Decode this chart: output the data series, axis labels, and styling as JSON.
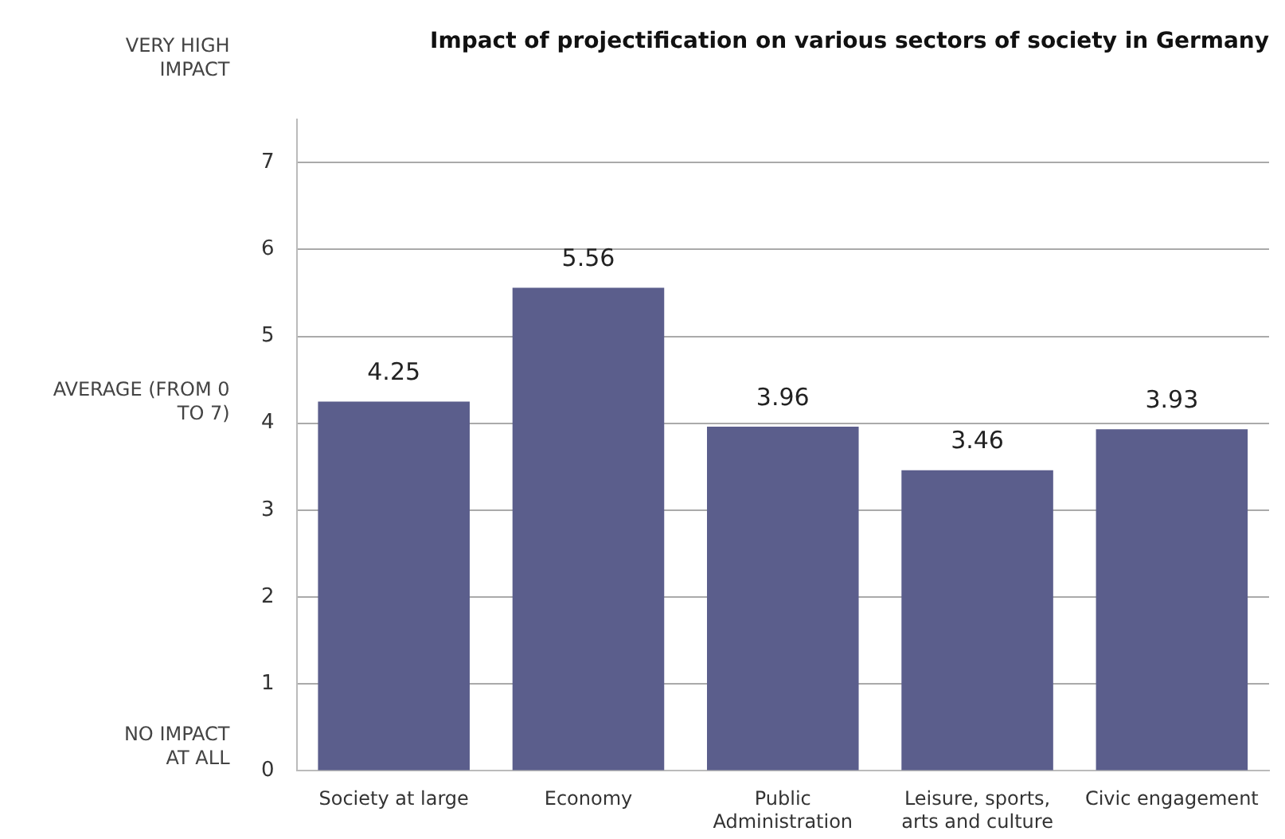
{
  "chart_data": {
    "type": "bar",
    "title": "Impact of projectification on various sectors of society in Germany",
    "categories": [
      "Society at large",
      "Economy",
      "Public Administration",
      "Leisure, sports, arts and culture",
      "Civic engagement"
    ],
    "values": [
      4.25,
      5.56,
      3.96,
      3.46,
      3.93
    ],
    "color": "#5b5e8c",
    "ylim": [
      0,
      7.5
    ],
    "yticks": [
      0,
      1,
      2,
      3,
      4,
      5,
      6,
      7
    ],
    "grid": "y",
    "data_labels": true,
    "annotations": [
      "VERY HIGH IMPACT",
      "AVERAGE (FROM 0 TO 7)",
      "NO IMPACT AT ALL"
    ]
  }
}
